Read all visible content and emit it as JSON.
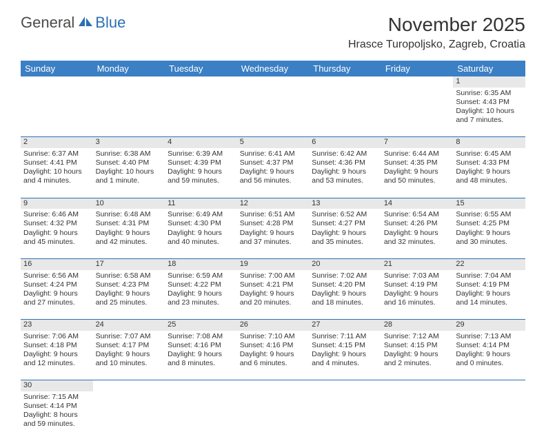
{
  "logo": {
    "text1": "General",
    "text2": "Blue"
  },
  "header": {
    "month_title": "November 2025",
    "location": "Hrasce Turopoljsko, Zagreb, Croatia"
  },
  "colors": {
    "header_bg": "#3b7fc4",
    "header_text": "#ffffff",
    "daynum_bg": "#e8e8e8",
    "row_border": "#2a6fb5",
    "text": "#333333",
    "logo_gray": "#4a4a4a",
    "logo_blue": "#2a6fb5",
    "page_bg": "#ffffff"
  },
  "typography": {
    "month_title_size": 28,
    "location_size": 16,
    "header_size": 13,
    "cell_size": 10.5,
    "daynum_size": 11,
    "font_family": "Arial"
  },
  "day_headers": [
    "Sunday",
    "Monday",
    "Tuesday",
    "Wednesday",
    "Thursday",
    "Friday",
    "Saturday"
  ],
  "weeks": [
    [
      null,
      null,
      null,
      null,
      null,
      null,
      {
        "n": "1",
        "sr": "6:35 AM",
        "ss": "4:43 PM",
        "dl": "10 hours and 7 minutes."
      }
    ],
    [
      {
        "n": "2",
        "sr": "6:37 AM",
        "ss": "4:41 PM",
        "dl": "10 hours and 4 minutes."
      },
      {
        "n": "3",
        "sr": "6:38 AM",
        "ss": "4:40 PM",
        "dl": "10 hours and 1 minute."
      },
      {
        "n": "4",
        "sr": "6:39 AM",
        "ss": "4:39 PM",
        "dl": "9 hours and 59 minutes."
      },
      {
        "n": "5",
        "sr": "6:41 AM",
        "ss": "4:37 PM",
        "dl": "9 hours and 56 minutes."
      },
      {
        "n": "6",
        "sr": "6:42 AM",
        "ss": "4:36 PM",
        "dl": "9 hours and 53 minutes."
      },
      {
        "n": "7",
        "sr": "6:44 AM",
        "ss": "4:35 PM",
        "dl": "9 hours and 50 minutes."
      },
      {
        "n": "8",
        "sr": "6:45 AM",
        "ss": "4:33 PM",
        "dl": "9 hours and 48 minutes."
      }
    ],
    [
      {
        "n": "9",
        "sr": "6:46 AM",
        "ss": "4:32 PM",
        "dl": "9 hours and 45 minutes."
      },
      {
        "n": "10",
        "sr": "6:48 AM",
        "ss": "4:31 PM",
        "dl": "9 hours and 42 minutes."
      },
      {
        "n": "11",
        "sr": "6:49 AM",
        "ss": "4:30 PM",
        "dl": "9 hours and 40 minutes."
      },
      {
        "n": "12",
        "sr": "6:51 AM",
        "ss": "4:28 PM",
        "dl": "9 hours and 37 minutes."
      },
      {
        "n": "13",
        "sr": "6:52 AM",
        "ss": "4:27 PM",
        "dl": "9 hours and 35 minutes."
      },
      {
        "n": "14",
        "sr": "6:54 AM",
        "ss": "4:26 PM",
        "dl": "9 hours and 32 minutes."
      },
      {
        "n": "15",
        "sr": "6:55 AM",
        "ss": "4:25 PM",
        "dl": "9 hours and 30 minutes."
      }
    ],
    [
      {
        "n": "16",
        "sr": "6:56 AM",
        "ss": "4:24 PM",
        "dl": "9 hours and 27 minutes."
      },
      {
        "n": "17",
        "sr": "6:58 AM",
        "ss": "4:23 PM",
        "dl": "9 hours and 25 minutes."
      },
      {
        "n": "18",
        "sr": "6:59 AM",
        "ss": "4:22 PM",
        "dl": "9 hours and 23 minutes."
      },
      {
        "n": "19",
        "sr": "7:00 AM",
        "ss": "4:21 PM",
        "dl": "9 hours and 20 minutes."
      },
      {
        "n": "20",
        "sr": "7:02 AM",
        "ss": "4:20 PM",
        "dl": "9 hours and 18 minutes."
      },
      {
        "n": "21",
        "sr": "7:03 AM",
        "ss": "4:19 PM",
        "dl": "9 hours and 16 minutes."
      },
      {
        "n": "22",
        "sr": "7:04 AM",
        "ss": "4:19 PM",
        "dl": "9 hours and 14 minutes."
      }
    ],
    [
      {
        "n": "23",
        "sr": "7:06 AM",
        "ss": "4:18 PM",
        "dl": "9 hours and 12 minutes."
      },
      {
        "n": "24",
        "sr": "7:07 AM",
        "ss": "4:17 PM",
        "dl": "9 hours and 10 minutes."
      },
      {
        "n": "25",
        "sr": "7:08 AM",
        "ss": "4:16 PM",
        "dl": "9 hours and 8 minutes."
      },
      {
        "n": "26",
        "sr": "7:10 AM",
        "ss": "4:16 PM",
        "dl": "9 hours and 6 minutes."
      },
      {
        "n": "27",
        "sr": "7:11 AM",
        "ss": "4:15 PM",
        "dl": "9 hours and 4 minutes."
      },
      {
        "n": "28",
        "sr": "7:12 AM",
        "ss": "4:15 PM",
        "dl": "9 hours and 2 minutes."
      },
      {
        "n": "29",
        "sr": "7:13 AM",
        "ss": "4:14 PM",
        "dl": "9 hours and 0 minutes."
      }
    ],
    [
      {
        "n": "30",
        "sr": "7:15 AM",
        "ss": "4:14 PM",
        "dl": "8 hours and 59 minutes."
      },
      null,
      null,
      null,
      null,
      null,
      null
    ]
  ],
  "labels": {
    "sunrise": "Sunrise:",
    "sunset": "Sunset:",
    "daylight": "Daylight:"
  }
}
